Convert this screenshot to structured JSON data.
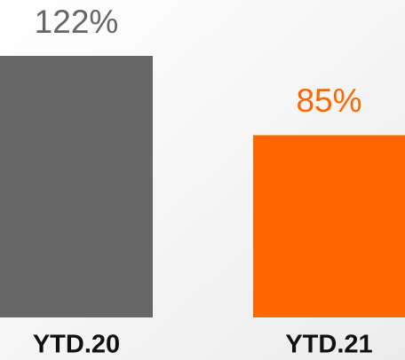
{
  "chart_data": {
    "type": "bar",
    "categories": [
      "YTD.20",
      "YTD.21"
    ],
    "values": [
      122,
      85
    ],
    "value_labels": [
      "122%",
      "85%"
    ],
    "colors": [
      "#666666",
      "#ff6600"
    ]
  }
}
